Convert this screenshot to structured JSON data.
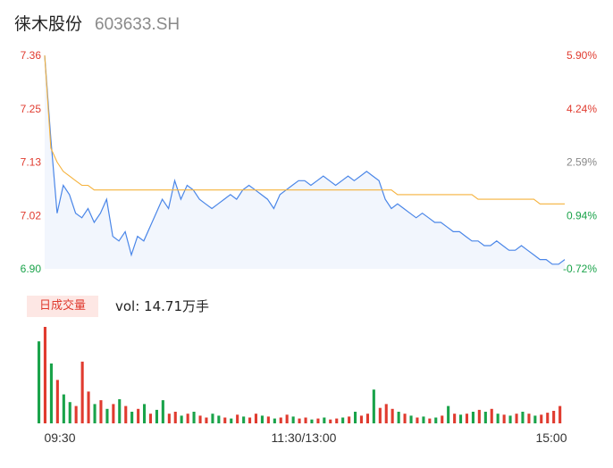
{
  "header": {
    "name": "徕木股份",
    "code": "603633.SH"
  },
  "volume": {
    "tab_label": "日成交量",
    "label": "vol: 14.71万手"
  },
  "colors": {
    "price_line": "#4a86e8",
    "avg_line": "#f5b23c",
    "up": "#e03b2f",
    "down": "#1aa34a",
    "fill": "#f2f6fd"
  },
  "chart_data": {
    "type": "line",
    "y_left_ticks": [
      "7.36",
      "7.25",
      "7.13",
      "7.02",
      "6.90"
    ],
    "y_right_ticks": [
      "5.90%",
      "4.24%",
      "2.59%",
      "0.94%",
      "-0.72%"
    ],
    "x_ticks": [
      "09:30",
      "11:30/13:00",
      "15:00"
    ],
    "ylim": [
      6.9,
      7.36
    ],
    "ref_price": 6.95,
    "series": [
      {
        "role": "price",
        "values": [
          7.36,
          7.18,
          7.02,
          7.08,
          7.06,
          7.02,
          7.01,
          7.03,
          7.0,
          7.02,
          7.05,
          6.97,
          6.96,
          6.98,
          6.93,
          6.97,
          6.96,
          6.99,
          7.02,
          7.05,
          7.03,
          7.09,
          7.05,
          7.08,
          7.07,
          7.05,
          7.04,
          7.03,
          7.04,
          7.05,
          7.06,
          7.05,
          7.07,
          7.08,
          7.07,
          7.06,
          7.05,
          7.03,
          7.06,
          7.07,
          7.08,
          7.09,
          7.09,
          7.08,
          7.09,
          7.1,
          7.09,
          7.08,
          7.09,
          7.1,
          7.09,
          7.1,
          7.11,
          7.1,
          7.09,
          7.05,
          7.03,
          7.04,
          7.03,
          7.02,
          7.01,
          7.02,
          7.01,
          7.0,
          7.0,
          6.99,
          6.98,
          6.98,
          6.97,
          6.96,
          6.96,
          6.95,
          6.95,
          6.96,
          6.95,
          6.94,
          6.94,
          6.95,
          6.94,
          6.93,
          6.92,
          6.92,
          6.91,
          6.91,
          6.92
        ]
      },
      {
        "role": "average",
        "values": [
          7.36,
          7.16,
          7.13,
          7.11,
          7.1,
          7.09,
          7.08,
          7.08,
          7.07,
          7.07,
          7.07,
          7.07,
          7.07,
          7.07,
          7.07,
          7.07,
          7.07,
          7.07,
          7.07,
          7.07,
          7.07,
          7.07,
          7.07,
          7.07,
          7.07,
          7.07,
          7.07,
          7.07,
          7.07,
          7.07,
          7.07,
          7.07,
          7.07,
          7.07,
          7.07,
          7.07,
          7.07,
          7.07,
          7.07,
          7.07,
          7.07,
          7.07,
          7.07,
          7.07,
          7.07,
          7.07,
          7.07,
          7.07,
          7.07,
          7.07,
          7.07,
          7.07,
          7.07,
          7.07,
          7.07,
          7.07,
          7.07,
          7.06,
          7.06,
          7.06,
          7.06,
          7.06,
          7.06,
          7.06,
          7.06,
          7.06,
          7.06,
          7.06,
          7.06,
          7.06,
          7.05,
          7.05,
          7.05,
          7.05,
          7.05,
          7.05,
          7.05,
          7.05,
          7.05,
          7.05,
          7.04,
          7.04,
          7.04,
          7.04,
          7.04
        ]
      }
    ],
    "volume_bars": [
      {
        "v": 0.85,
        "c": "down"
      },
      {
        "v": 1.0,
        "c": "up"
      },
      {
        "v": 0.62,
        "c": "down"
      },
      {
        "v": 0.45,
        "c": "up"
      },
      {
        "v": 0.3,
        "c": "down"
      },
      {
        "v": 0.22,
        "c": "down"
      },
      {
        "v": 0.18,
        "c": "up"
      },
      {
        "v": 0.64,
        "c": "up"
      },
      {
        "v": 0.33,
        "c": "up"
      },
      {
        "v": 0.2,
        "c": "down"
      },
      {
        "v": 0.24,
        "c": "up"
      },
      {
        "v": 0.15,
        "c": "down"
      },
      {
        "v": 0.2,
        "c": "up"
      },
      {
        "v": 0.25,
        "c": "down"
      },
      {
        "v": 0.18,
        "c": "up"
      },
      {
        "v": 0.12,
        "c": "down"
      },
      {
        "v": 0.15,
        "c": "up"
      },
      {
        "v": 0.2,
        "c": "down"
      },
      {
        "v": 0.1,
        "c": "up"
      },
      {
        "v": 0.14,
        "c": "down"
      },
      {
        "v": 0.24,
        "c": "down"
      },
      {
        "v": 0.1,
        "c": "up"
      },
      {
        "v": 0.12,
        "c": "up"
      },
      {
        "v": 0.08,
        "c": "down"
      },
      {
        "v": 0.1,
        "c": "up"
      },
      {
        "v": 0.12,
        "c": "down"
      },
      {
        "v": 0.08,
        "c": "up"
      },
      {
        "v": 0.06,
        "c": "up"
      },
      {
        "v": 0.1,
        "c": "down"
      },
      {
        "v": 0.08,
        "c": "down"
      },
      {
        "v": 0.06,
        "c": "up"
      },
      {
        "v": 0.05,
        "c": "down"
      },
      {
        "v": 0.09,
        "c": "up"
      },
      {
        "v": 0.07,
        "c": "down"
      },
      {
        "v": 0.06,
        "c": "up"
      },
      {
        "v": 0.1,
        "c": "up"
      },
      {
        "v": 0.08,
        "c": "down"
      },
      {
        "v": 0.07,
        "c": "up"
      },
      {
        "v": 0.05,
        "c": "down"
      },
      {
        "v": 0.06,
        "c": "up"
      },
      {
        "v": 0.09,
        "c": "up"
      },
      {
        "v": 0.07,
        "c": "down"
      },
      {
        "v": 0.05,
        "c": "up"
      },
      {
        "v": 0.06,
        "c": "up"
      },
      {
        "v": 0.04,
        "c": "down"
      },
      {
        "v": 0.05,
        "c": "up"
      },
      {
        "v": 0.06,
        "c": "down"
      },
      {
        "v": 0.04,
        "c": "up"
      },
      {
        "v": 0.05,
        "c": "up"
      },
      {
        "v": 0.06,
        "c": "down"
      },
      {
        "v": 0.07,
        "c": "up"
      },
      {
        "v": 0.12,
        "c": "down"
      },
      {
        "v": 0.08,
        "c": "up"
      },
      {
        "v": 0.1,
        "c": "up"
      },
      {
        "v": 0.35,
        "c": "down"
      },
      {
        "v": 0.16,
        "c": "up"
      },
      {
        "v": 0.2,
        "c": "up"
      },
      {
        "v": 0.15,
        "c": "up"
      },
      {
        "v": 0.12,
        "c": "down"
      },
      {
        "v": 0.1,
        "c": "up"
      },
      {
        "v": 0.08,
        "c": "down"
      },
      {
        "v": 0.06,
        "c": "up"
      },
      {
        "v": 0.07,
        "c": "down"
      },
      {
        "v": 0.05,
        "c": "up"
      },
      {
        "v": 0.06,
        "c": "down"
      },
      {
        "v": 0.08,
        "c": "up"
      },
      {
        "v": 0.18,
        "c": "down"
      },
      {
        "v": 0.1,
        "c": "up"
      },
      {
        "v": 0.09,
        "c": "down"
      },
      {
        "v": 0.1,
        "c": "up"
      },
      {
        "v": 0.12,
        "c": "down"
      },
      {
        "v": 0.14,
        "c": "up"
      },
      {
        "v": 0.12,
        "c": "down"
      },
      {
        "v": 0.15,
        "c": "up"
      },
      {
        "v": 0.1,
        "c": "down"
      },
      {
        "v": 0.09,
        "c": "up"
      },
      {
        "v": 0.08,
        "c": "down"
      },
      {
        "v": 0.1,
        "c": "up"
      },
      {
        "v": 0.12,
        "c": "down"
      },
      {
        "v": 0.1,
        "c": "up"
      },
      {
        "v": 0.08,
        "c": "down"
      },
      {
        "v": 0.09,
        "c": "up"
      },
      {
        "v": 0.11,
        "c": "up"
      },
      {
        "v": 0.13,
        "c": "up"
      },
      {
        "v": 0.18,
        "c": "up"
      }
    ]
  }
}
